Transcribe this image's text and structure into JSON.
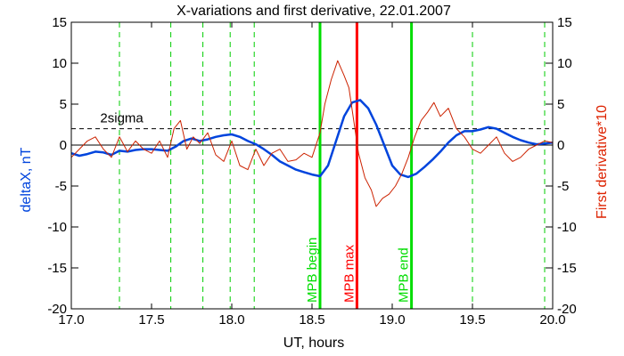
{
  "chart_data": {
    "type": "line",
    "title": "X-variations and first derivative, 22.01.2007",
    "xlabel": "UT, hours",
    "ylabel_left": "deltaX, nT",
    "ylabel_right": "First derivative*10",
    "xlim": [
      17.0,
      20.0
    ],
    "ylim": [
      -20,
      15
    ],
    "xticks": [
      17.0,
      17.5,
      18.0,
      18.5,
      19.0,
      19.5,
      20.0
    ],
    "xtick_labels": [
      "17.0",
      "17.5",
      "18.0",
      "18.5",
      "19.0",
      "19.5",
      "20.0"
    ],
    "yticks": [
      -20,
      -15,
      -10,
      -5,
      0,
      5,
      10,
      15
    ],
    "ytick_labels": [
      "-20",
      "-15",
      "-10",
      "-5",
      "0",
      "5",
      "10",
      "15"
    ],
    "zero_line": 0,
    "threshold": {
      "label": "2sigma",
      "value": 2.0,
      "style": "dashed",
      "color": "#000000"
    },
    "dashed_verticals": [
      17.3,
      17.62,
      17.82,
      17.99,
      18.14,
      19.5,
      19.95
    ],
    "dashed_vertical_color": "#00cc00",
    "markers": [
      {
        "label": "MPB begin",
        "x": 18.55,
        "color": "#00dd00"
      },
      {
        "label": "MPB max",
        "x": 18.78,
        "color": "#ff0000"
      },
      {
        "label": "MPB end",
        "x": 19.12,
        "color": "#00dd00"
      }
    ],
    "series": [
      {
        "axis": "left",
        "color": "#0044dd",
        "x": [
          17.0,
          17.05,
          17.1,
          17.15,
          17.2,
          17.25,
          17.3,
          17.35,
          17.4,
          17.45,
          17.5,
          17.55,
          17.6,
          17.65,
          17.7,
          17.75,
          17.8,
          17.85,
          17.9,
          17.95,
          18.0,
          18.05,
          18.1,
          18.15,
          18.2,
          18.25,
          18.3,
          18.35,
          18.4,
          18.45,
          18.5,
          18.55,
          18.6,
          18.65,
          18.7,
          18.75,
          18.8,
          18.85,
          18.9,
          18.95,
          19.0,
          19.05,
          19.1,
          19.15,
          19.2,
          19.25,
          19.3,
          19.35,
          19.4,
          19.45,
          19.5,
          19.55,
          19.6,
          19.65,
          19.7,
          19.75,
          19.8,
          19.85,
          19.9,
          19.95,
          20.0
        ],
        "values": [
          -1.0,
          -1.3,
          -1.1,
          -0.8,
          -0.9,
          -1.2,
          -0.7,
          -0.8,
          -0.6,
          -0.5,
          -0.5,
          -0.6,
          -0.7,
          -0.2,
          0.5,
          0.8,
          0.5,
          0.7,
          1.0,
          1.2,
          1.3,
          1.0,
          0.5,
          0.1,
          -0.5,
          -1.2,
          -2.0,
          -2.5,
          -3.0,
          -3.3,
          -3.6,
          -3.8,
          -2.5,
          0.5,
          3.5,
          5.2,
          5.5,
          4.5,
          2.5,
          0.0,
          -2.5,
          -3.6,
          -3.9,
          -3.5,
          -2.7,
          -1.8,
          -0.8,
          0.3,
          1.2,
          1.7,
          1.7,
          1.9,
          2.2,
          2.0,
          1.5,
          1.0,
          0.6,
          0.3,
          0.1,
          0.2,
          0.3
        ]
      },
      {
        "axis": "right",
        "color": "#cc2200",
        "x": [
          17.0,
          17.05,
          17.1,
          17.15,
          17.2,
          17.25,
          17.3,
          17.35,
          17.4,
          17.45,
          17.5,
          17.55,
          17.6,
          17.64,
          17.68,
          17.72,
          17.76,
          17.8,
          17.85,
          17.9,
          17.95,
          18.0,
          18.05,
          18.1,
          18.15,
          18.2,
          18.25,
          18.3,
          18.35,
          18.4,
          18.45,
          18.5,
          18.55,
          18.58,
          18.62,
          18.66,
          18.7,
          18.73,
          18.76,
          18.79,
          18.83,
          18.87,
          18.9,
          18.94,
          18.98,
          19.02,
          19.06,
          19.1,
          19.14,
          19.18,
          19.22,
          19.26,
          19.3,
          19.35,
          19.4,
          19.45,
          19.5,
          19.55,
          19.6,
          19.65,
          19.7,
          19.75,
          19.8,
          19.85,
          19.9,
          19.95,
          20.0
        ],
        "values": [
          -1.5,
          -0.5,
          0.5,
          1.0,
          -0.5,
          -1.5,
          1.0,
          -0.8,
          0.5,
          -0.5,
          -1.0,
          0.5,
          -1.5,
          2.0,
          3.0,
          -0.5,
          1.0,
          0.2,
          1.5,
          -1.2,
          -2.0,
          0.5,
          -2.5,
          -3.0,
          -0.5,
          -2.5,
          -1.0,
          -0.5,
          -2.0,
          -1.8,
          -1.0,
          -1.5,
          1.5,
          5.0,
          8.0,
          10.3,
          8.5,
          7.0,
          3.0,
          -1.0,
          -4.0,
          -5.5,
          -7.5,
          -6.5,
          -6.0,
          -5.0,
          -3.5,
          -1.5,
          1.0,
          3.0,
          4.0,
          5.2,
          3.5,
          4.5,
          2.0,
          1.0,
          -0.5,
          -1.0,
          0.0,
          1.0,
          -1.0,
          -2.0,
          -1.5,
          -0.5,
          0.0,
          0.5,
          0.3
        ]
      }
    ]
  }
}
